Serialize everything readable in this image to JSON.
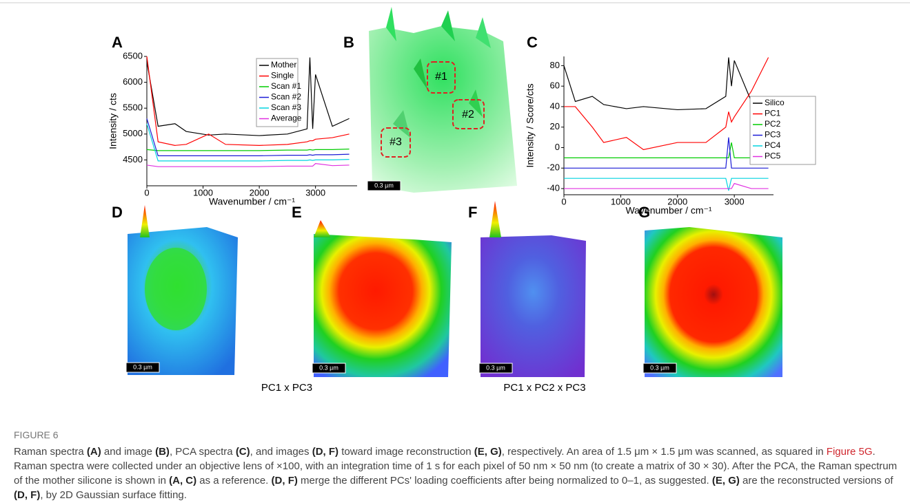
{
  "chart_data": [
    {
      "type": "line",
      "x_label": "Wavenumber / cm⁻¹",
      "y_label": "Intensity / cts",
      "xlim": [
        0,
        3740
      ],
      "xticks": [
        0,
        1000,
        2000,
        3000
      ],
      "ylim": [
        4000,
        6500
      ],
      "yticks": [
        4500,
        5000,
        5500,
        6000,
        6500
      ],
      "legend": "upper right",
      "series": [
        {
          "name": "Mother",
          "color": "#000000",
          "x": [
            0,
            200,
            500,
            700,
            1100,
            1400,
            2000,
            2500,
            2850,
            2900,
            2950,
            3000,
            3300,
            3600
          ],
          "values": [
            6400,
            5150,
            5200,
            5050,
            4980,
            5000,
            4970,
            5000,
            5100,
            6480,
            5100,
            6150,
            5150,
            5300
          ]
        },
        {
          "name": "Single",
          "color": "#ff0000",
          "x": [
            0,
            200,
            500,
            700,
            1100,
            1400,
            2000,
            2500,
            2850,
            2900,
            2950,
            3000,
            3300,
            3600
          ],
          "values": [
            6500,
            4850,
            4780,
            4800,
            5000,
            4800,
            4780,
            4800,
            4850,
            4870,
            4870,
            4900,
            4930,
            5000
          ]
        },
        {
          "name": "Scan #1",
          "color": "#00cc00",
          "x": [
            0,
            200,
            500,
            700,
            1100,
            1400,
            2000,
            2500,
            2850,
            2900,
            2950,
            3000,
            3300,
            3600
          ],
          "values": [
            4700,
            4680,
            4680,
            4680,
            4680,
            4680,
            4680,
            4690,
            4690,
            4700,
            4690,
            4700,
            4700,
            4710
          ]
        },
        {
          "name": "Scan #2",
          "color": "#1a1ad6",
          "x": [
            0,
            200,
            500,
            700,
            1100,
            1400,
            2000,
            2500,
            2850,
            2900,
            2950,
            3000,
            3300,
            3600
          ],
          "values": [
            5300,
            4580,
            4580,
            4580,
            4580,
            4580,
            4580,
            4590,
            4590,
            4600,
            4590,
            4600,
            4600,
            4610
          ]
        },
        {
          "name": "Scan #3",
          "color": "#00d4e0",
          "x": [
            0,
            200,
            500,
            700,
            1100,
            1400,
            2000,
            2500,
            2850,
            2900,
            2950,
            3000,
            3300,
            3600
          ],
          "values": [
            5200,
            4480,
            4480,
            4480,
            4480,
            4480,
            4480,
            4490,
            4490,
            4500,
            4490,
            4500,
            4500,
            4510
          ]
        },
        {
          "name": "Average",
          "color": "#e030e0",
          "x": [
            0,
            200,
            500,
            700,
            1100,
            1400,
            2000,
            2500,
            2850,
            2900,
            2950,
            3000,
            3300,
            3600
          ],
          "values": [
            4400,
            4370,
            4370,
            4370,
            4370,
            4370,
            4370,
            4380,
            4380,
            4380,
            4380,
            4430,
            4390,
            4400
          ]
        }
      ]
    },
    {
      "type": "line",
      "x_label": "Wavenumber / cm⁻¹",
      "y_label": "Intensity / Score/cts",
      "xlim": [
        0,
        3690
      ],
      "xticks": [
        0,
        1000,
        2000,
        3000
      ],
      "ylim": [
        -46,
        89
      ],
      "yticks": [
        -40,
        -20,
        0,
        20,
        40,
        60,
        80
      ],
      "legend": "right",
      "series": [
        {
          "name": "Silico",
          "color": "#000000",
          "x": [
            0,
            200,
            500,
            700,
            1100,
            1400,
            2000,
            2500,
            2850,
            2900,
            2950,
            3000,
            3300,
            3600
          ],
          "values": [
            80,
            45,
            50,
            42,
            38,
            40,
            37,
            38,
            50,
            88,
            60,
            85,
            45,
            48
          ]
        },
        {
          "name": "PC1",
          "color": "#ff0000",
          "x": [
            0,
            200,
            500,
            700,
            1100,
            1400,
            2000,
            2500,
            2850,
            2900,
            2950,
            3000,
            3300,
            3600
          ],
          "values": [
            40,
            40,
            20,
            5,
            10,
            -2,
            5,
            5,
            20,
            35,
            25,
            30,
            55,
            88
          ]
        },
        {
          "name": "PC2",
          "color": "#00cc00",
          "x": [
            0,
            200,
            500,
            700,
            1100,
            1400,
            2000,
            2500,
            2850,
            2900,
            2950,
            3000,
            3300,
            3600
          ],
          "values": [
            -10,
            -10,
            -10,
            -10,
            -10,
            -10,
            -10,
            -10,
            -10,
            -10,
            5,
            -10,
            -10,
            -10
          ]
        },
        {
          "name": "PC3",
          "color": "#1a1ad6",
          "x": [
            0,
            200,
            500,
            700,
            1100,
            1400,
            2000,
            2500,
            2850,
            2900,
            2950,
            3000,
            3300,
            3600
          ],
          "values": [
            -20,
            -20,
            -20,
            -20,
            -20,
            -20,
            -20,
            -20,
            -20,
            10,
            -20,
            -20,
            -20,
            -20
          ]
        },
        {
          "name": "PC4",
          "color": "#00d4e0",
          "x": [
            0,
            200,
            500,
            700,
            1100,
            1400,
            2000,
            2500,
            2850,
            2900,
            2950,
            3000,
            3300,
            3600
          ],
          "values": [
            -30,
            -30,
            -30,
            -30,
            -30,
            -30,
            -30,
            -30,
            -30,
            -42,
            -30,
            -30,
            -30,
            -30
          ]
        },
        {
          "name": "PC5",
          "color": "#e030e0",
          "x": [
            0,
            200,
            500,
            700,
            1100,
            1400,
            2000,
            2500,
            2850,
            2900,
            2950,
            3000,
            3300,
            3600
          ],
          "values": [
            -40,
            -40,
            -40,
            -40,
            -40,
            -40,
            -40,
            -40,
            -40,
            -40,
            -40,
            -35,
            -40,
            -40
          ]
        }
      ]
    }
  ],
  "panel_labels": [
    "A",
    "B",
    "C",
    "D",
    "E",
    "F",
    "G"
  ],
  "panel_b_markers": [
    "#1",
    "#2",
    "#3"
  ],
  "scale_bars": [
    "0.3 µm",
    "0.3 µm",
    "0.3 µm",
    "0.3 µm",
    "0.3 µm"
  ],
  "subcaptions": [
    "PC1 x PC3",
    "PC1 x PC2 x PC3"
  ],
  "caption": {
    "label": "FIGURE 6",
    "segments": [
      "Raman spectra ",
      "(A)",
      " and image ",
      "(B)",
      ", PCA spectra ",
      "(C)",
      ", and images ",
      "(D, F)",
      " toward image reconstruction ",
      "(E, G)",
      ", respectively. An area of 1.5 μm × 1.5 μm was scanned, as squared in ",
      "Figure 5G",
      ". Raman spectra were collected under an objective lens of ×100, with an integration time of 1 s for each pixel of 50 nm × 50 nm (to create a matrix of 30 × 30). After the PCA, the Raman spectrum of the mother silicone is shown in ",
      "(A, C)",
      " as a reference. ",
      "(D, F)",
      " merge the different PCs' loading coefficients after being normalized to 0–1, as suggested. ",
      "(E, G)",
      " are the reconstructed versions of ",
      "(D, F)",
      ", by 2D Gaussian surface fitting."
    ]
  }
}
